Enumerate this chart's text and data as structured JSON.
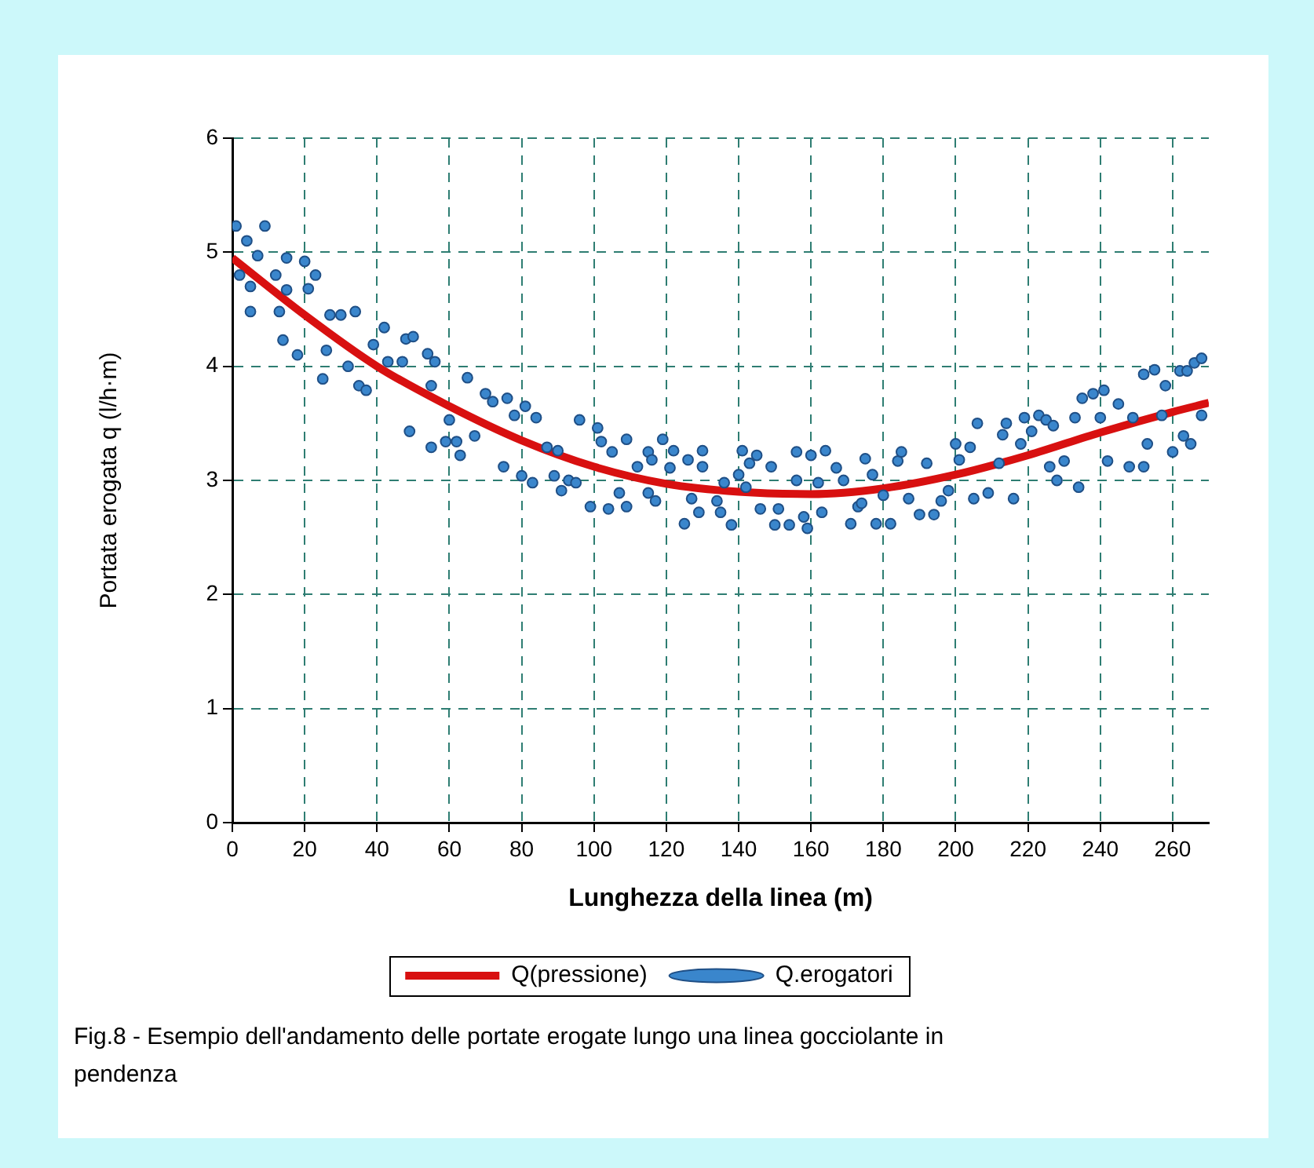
{
  "chart_data": {
    "type": "scatter",
    "xlabel": "Lunghezza della linea (m)",
    "ylabel": "Portata erogata q (l/h·m)",
    "xlim": [
      0,
      270
    ],
    "xticks": [
      0,
      20,
      40,
      60,
      80,
      100,
      120,
      140,
      160,
      180,
      200,
      220,
      240,
      260
    ],
    "ylim": [
      0,
      6
    ],
    "yticks": [
      0,
      1,
      2,
      3,
      4,
      5,
      6
    ],
    "grid": true,
    "legend": "bottom",
    "marker": "circle",
    "annotations": [
      "Fig.8 - Esempio dell'andamento delle portate erogate lungo una linea gocciolante in pendenza"
    ],
    "series": [
      {
        "name": "Q(pressione)",
        "type": "line",
        "color": "#d81010",
        "marker": "none",
        "x": [
          0,
          20,
          40,
          60,
          80,
          100,
          120,
          140,
          160,
          180,
          200,
          220,
          240,
          260,
          270
        ],
        "values": [
          4.95,
          4.45,
          4.0,
          3.65,
          3.35,
          3.12,
          2.97,
          2.9,
          2.88,
          2.93,
          3.05,
          3.22,
          3.42,
          3.6,
          3.68
        ]
      },
      {
        "name": "Q.erogatori",
        "type": "scatter",
        "color": "#3a86cc",
        "x": [
          1,
          2,
          4,
          5,
          5,
          7,
          9,
          12,
          13,
          14,
          15,
          15,
          18,
          20,
          21,
          23,
          25,
          26,
          27,
          30,
          32,
          34,
          35,
          37,
          39,
          42,
          43,
          47,
          48,
          49,
          50,
          54,
          55,
          55,
          56,
          59,
          60,
          62,
          63,
          65,
          67,
          70,
          72,
          75,
          76,
          78,
          80,
          81,
          83,
          84,
          87,
          89,
          90,
          91,
          93,
          95,
          96,
          99,
          101,
          102,
          104,
          105,
          107,
          109,
          109,
          112,
          115,
          115,
          116,
          117,
          119,
          121,
          122,
          125,
          126,
          127,
          129,
          130,
          130,
          134,
          135,
          136,
          138,
          140,
          141,
          142,
          143,
          145,
          146,
          149,
          150,
          151,
          154,
          156,
          156,
          158,
          159,
          160,
          162,
          163,
          164,
          167,
          169,
          171,
          173,
          174,
          175,
          177,
          178,
          180,
          182,
          184,
          185,
          187,
          190,
          192,
          194,
          196,
          198,
          200,
          201,
          204,
          205,
          206,
          209,
          212,
          213,
          214,
          216,
          218,
          219,
          221,
          223,
          225,
          226,
          227,
          228,
          230,
          233,
          234,
          235,
          238,
          240,
          241,
          242,
          245,
          248,
          249,
          252,
          252,
          253,
          255,
          257,
          258,
          260,
          262,
          263,
          264,
          265,
          266,
          268,
          268
        ],
        "values": [
          5.23,
          4.8,
          5.1,
          4.7,
          4.48,
          4.97,
          5.23,
          4.8,
          4.48,
          4.23,
          4.95,
          4.67,
          4.1,
          4.92,
          4.68,
          4.8,
          3.89,
          4.14,
          4.45,
          4.45,
          4.0,
          4.48,
          3.83,
          3.79,
          4.19,
          4.34,
          4.04,
          4.04,
          4.24,
          3.43,
          4.26,
          4.11,
          3.83,
          3.29,
          4.04,
          3.34,
          3.53,
          3.34,
          3.22,
          3.9,
          3.39,
          3.76,
          3.69,
          3.12,
          3.72,
          3.57,
          3.04,
          3.65,
          2.98,
          3.55,
          3.29,
          3.04,
          3.26,
          2.91,
          3.0,
          2.98,
          3.53,
          2.77,
          3.46,
          3.34,
          2.75,
          3.25,
          2.89,
          2.77,
          3.36,
          3.12,
          3.25,
          2.89,
          3.18,
          2.82,
          3.36,
          3.11,
          3.26,
          2.62,
          3.18,
          2.84,
          2.72,
          3.26,
          3.12,
          2.82,
          2.72,
          2.98,
          2.61,
          3.05,
          3.26,
          2.94,
          3.15,
          3.22,
          2.75,
          3.12,
          2.61,
          2.75,
          2.61,
          3.25,
          3.0,
          2.68,
          2.58,
          3.22,
          2.98,
          2.72,
          3.26,
          3.11,
          3.0,
          2.62,
          2.77,
          2.8,
          3.19,
          3.05,
          2.62,
          2.87,
          2.62,
          3.17,
          3.25,
          2.84,
          2.7,
          3.15,
          2.7,
          2.82,
          2.91,
          3.32,
          3.18,
          3.29,
          2.84,
          3.5,
          2.89,
          3.15,
          3.4,
          3.5,
          2.84,
          3.32,
          3.55,
          3.43,
          3.57,
          3.53,
          3.12,
          3.48,
          3.0,
          3.17,
          3.55,
          2.94,
          3.72,
          3.76,
          3.55,
          3.79,
          3.17,
          3.67,
          3.12,
          3.55,
          3.93,
          3.12,
          3.32,
          3.97,
          3.57,
          3.83,
          3.25,
          3.96,
          3.39,
          3.96,
          3.32,
          4.03,
          4.07,
          3.57
        ]
      }
    ]
  }
}
